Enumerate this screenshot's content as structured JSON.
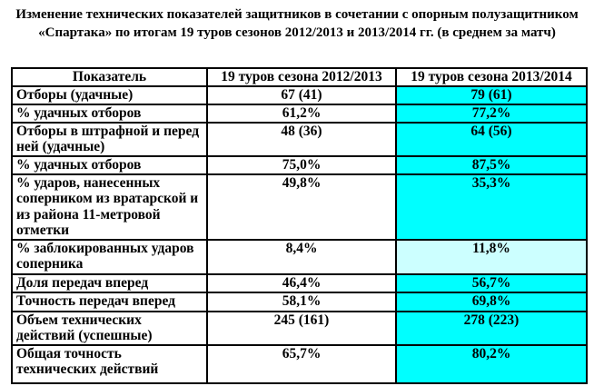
{
  "title": "Изменение технических показателей защитников в сочетании с опорным полузащитником «Спартака» по итогам 19 туров сезонов 2012/2013 и 2013/2014 гг. (в среднем за матч)",
  "colors": {
    "highlight_cyan": "#00ffff",
    "highlight_light_cyan": "#ccffff",
    "border": "#000000",
    "text": "#000000",
    "background": "#ffffff"
  },
  "table": {
    "headers": [
      "Показатель",
      "19 туров сезона 2012/2013",
      "19 туров сезона 2013/2014"
    ],
    "rows": [
      {
        "indicator": "Отборы (удачные)",
        "s2012": "67 (41)",
        "s2013": "79 (61)",
        "highlight": "cyan"
      },
      {
        "indicator": "% удачных отборов",
        "s2012": "61,2%",
        "s2013": "77,2%",
        "highlight": "cyan"
      },
      {
        "indicator": "Отборы в штрафной и перед ней (удачные)",
        "s2012": "48 (36)",
        "s2013": "64 (56)",
        "highlight": "cyan"
      },
      {
        "indicator": "% удачных отборов",
        "s2012": "75,0%",
        "s2013": "87,5%",
        "highlight": "cyan"
      },
      {
        "indicator": "% ударов, нанесенных соперником из вратарской и из района 11-метровой отметки",
        "s2012": "49,8%",
        "s2013": "35,3%",
        "highlight": "cyan"
      },
      {
        "indicator": "% заблокированных ударов соперника",
        "s2012": "8,4%",
        "s2013": "11,8%",
        "highlight": "light-cyan"
      },
      {
        "indicator": "Доля передач вперед",
        "s2012": "46,4%",
        "s2013": "56,7%",
        "highlight": "cyan"
      },
      {
        "indicator": "Точность передач вперед",
        "s2012": "58,1%",
        "s2013": "69,8%",
        "highlight": "cyan"
      },
      {
        "indicator": "Объем технических действий (успешные)",
        "s2012": "245 (161)",
        "s2013": "278 (223)",
        "highlight": "cyan"
      },
      {
        "indicator": "Общая точность технических действий",
        "s2012": "65,7%",
        "s2013": "80,2%",
        "highlight": "cyan"
      }
    ]
  }
}
